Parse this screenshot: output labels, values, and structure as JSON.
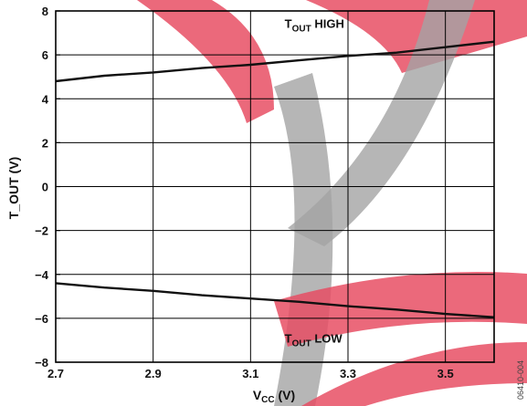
{
  "chart_data": {
    "type": "line",
    "xlabel": {
      "main": "V",
      "sub": "CC",
      "unit": " (V)"
    },
    "ylabel": {
      "main": "T_OUT",
      "unit": " (V)"
    },
    "xlim": [
      2.7,
      3.6
    ],
    "ylim": [
      -8,
      8
    ],
    "x_ticks": [
      2.7,
      2.9,
      3.1,
      3.3,
      3.5
    ],
    "x_tick_labels": [
      "2.7",
      "2.9",
      "3.1",
      "3.3",
      "3.5"
    ],
    "y_ticks": [
      8,
      6,
      4,
      2,
      0,
      -2,
      -4,
      -6,
      -8
    ],
    "y_tick_labels": [
      "8",
      "6",
      "4",
      "2",
      "0",
      "−2",
      "−4",
      "−6",
      "−8"
    ],
    "grid": true,
    "series": [
      {
        "name": "T_OUT HIGH",
        "x": [
          2.7,
          2.8,
          2.9,
          3.0,
          3.1,
          3.2,
          3.3,
          3.4,
          3.5,
          3.6
        ],
        "values": [
          4.8,
          5.05,
          5.2,
          5.4,
          5.55,
          5.75,
          5.95,
          6.1,
          6.35,
          6.6
        ]
      },
      {
        "name": "T_OUT LOW",
        "x": [
          2.7,
          2.8,
          2.9,
          3.0,
          3.1,
          3.2,
          3.3,
          3.4,
          3.5,
          3.6
        ],
        "values": [
          -4.4,
          -4.6,
          -4.75,
          -4.95,
          -5.1,
          -5.25,
          -5.45,
          -5.6,
          -5.8,
          -5.95
        ]
      }
    ],
    "annotations": [
      {
        "series": "T_OUT HIGH",
        "main": "T",
        "sub": "OUT",
        "tail": " HIGH"
      },
      {
        "series": "T_OUT LOW",
        "main": "T",
        "sub": "OUT",
        "tail": " LOW"
      }
    ],
    "figure_code": "06410-004"
  },
  "colors": {
    "series": "#111111",
    "grid": "#000000",
    "watermark_red": "#e43a52",
    "watermark_gray": "#9a9a9a"
  }
}
